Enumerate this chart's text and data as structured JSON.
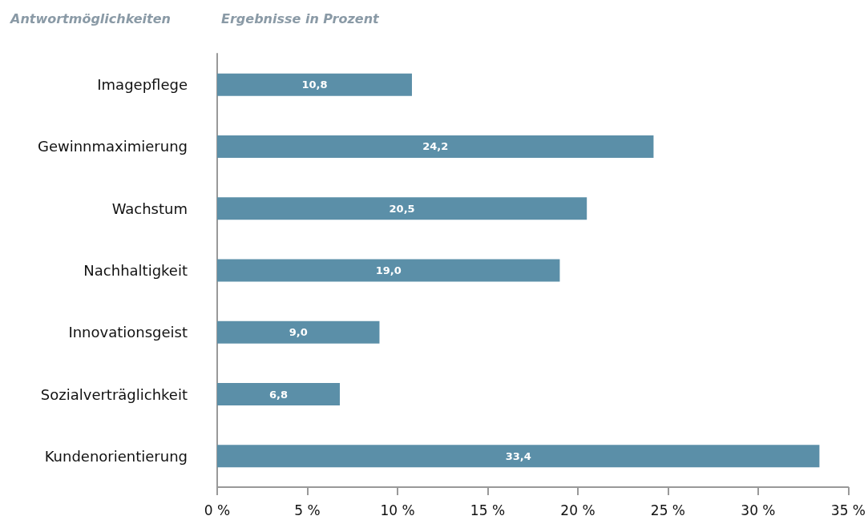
{
  "chart_data": {
    "type": "bar",
    "orientation": "horizontal",
    "ylabel": "Antwortmöglichkeiten",
    "xlabel": "Ergebnisse in Prozent",
    "categories": [
      "Imagepflege",
      "Gewinnmaximierung",
      "Wachstum",
      "Nachhaltigkeit",
      "Innovationsgeist",
      "Sozialverträglichkeit",
      "Kundenorientierung"
    ],
    "values": [
      10.8,
      24.2,
      20.5,
      19.0,
      9.0,
      6.8,
      33.4
    ],
    "value_labels": [
      "10,8",
      "24,2",
      "20,5",
      "19,0",
      "9,0",
      "6,8",
      "33,4"
    ],
    "color": "#5b8fa8",
    "xlim": [
      0,
      35
    ],
    "xticks": [
      {
        "value": 0,
        "label": "0 %"
      },
      {
        "value": 5,
        "label": "5 %"
      },
      {
        "value": 10,
        "label": "10 %"
      },
      {
        "value": 15,
        "label": "15 %"
      },
      {
        "value": 20,
        "label": "20 %"
      },
      {
        "value": 25,
        "label": "25 %"
      },
      {
        "value": 30,
        "label": "30 %"
      },
      {
        "value": 35,
        "label": "35 %"
      }
    ],
    "grid": false
  }
}
